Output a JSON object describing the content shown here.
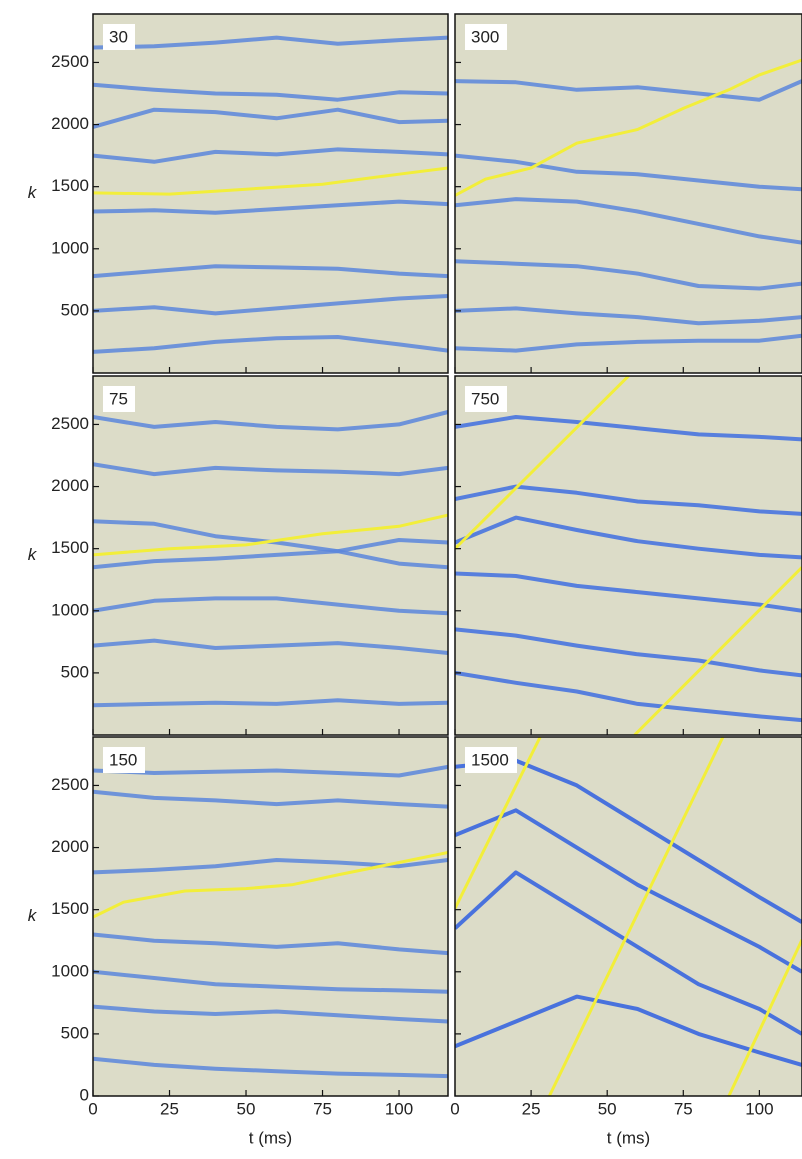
{
  "chart_data": [
    {
      "type": "line",
      "label": "30",
      "ylabel": "k",
      "xlim": [
        0,
        116
      ],
      "ylim": [
        0,
        2890
      ],
      "xticks": [
        0,
        25,
        50,
        75,
        100
      ],
      "yticks": [
        500,
        1000,
        1500,
        2000,
        2500
      ],
      "line": {
        "color": "#f2ee3a",
        "x": [
          0,
          25,
          50,
          75,
          100,
          116
        ],
        "values": [
          1450,
          1440,
          1480,
          1520,
          1600,
          1650
        ]
      },
      "ridges": {
        "color": "#5a86dc",
        "x": [
          0,
          20,
          40,
          60,
          80,
          100,
          116
        ],
        "values": [
          [
            2620,
            2630,
            2660,
            2700,
            2650,
            2680,
            2700
          ],
          [
            2320,
            2280,
            2250,
            2240,
            2200,
            2260,
            2250
          ],
          [
            1980,
            2120,
            2100,
            2050,
            2120,
            2020,
            2030
          ],
          [
            1750,
            1700,
            1780,
            1760,
            1800,
            1780,
            1760
          ],
          [
            1300,
            1310,
            1290,
            1320,
            1350,
            1380,
            1360
          ],
          [
            780,
            820,
            860,
            850,
            840,
            800,
            780
          ],
          [
            500,
            530,
            480,
            520,
            560,
            600,
            620
          ],
          [
            170,
            200,
            250,
            280,
            290,
            230,
            180
          ]
        ]
      }
    },
    {
      "type": "line",
      "label": "300",
      "xlim": [
        0,
        114
      ],
      "ylim": [
        0,
        2890
      ],
      "xticks": [
        0,
        25,
        50,
        75,
        100
      ],
      "yticks": [
        500,
        1000,
        1500,
        2000,
        2500
      ],
      "line": {
        "color": "#f2ee3a",
        "x": [
          0,
          10,
          25,
          40,
          60,
          75,
          90,
          100,
          114
        ],
        "values": [
          1430,
          1560,
          1650,
          1850,
          1960,
          2130,
          2280,
          2400,
          2520
        ]
      },
      "ridges": {
        "color": "#5a86dc",
        "x": [
          0,
          20,
          40,
          60,
          80,
          100,
          114
        ],
        "values": [
          [
            2350,
            2340,
            2280,
            2300,
            2250,
            2200,
            2350
          ],
          [
            1750,
            1700,
            1620,
            1600,
            1550,
            1500,
            1480
          ],
          [
            1350,
            1400,
            1380,
            1300,
            1200,
            1100,
            1050
          ],
          [
            900,
            880,
            860,
            800,
            700,
            680,
            720
          ],
          [
            500,
            520,
            480,
            450,
            400,
            420,
            450
          ],
          [
            200,
            180,
            230,
            250,
            260,
            260,
            300
          ]
        ]
      }
    },
    {
      "type": "line",
      "label": "75",
      "ylabel": "k",
      "xlim": [
        0,
        116
      ],
      "ylim": [
        0,
        2890
      ],
      "xticks": [
        0,
        25,
        50,
        75,
        100
      ],
      "yticks": [
        500,
        1000,
        1500,
        2000,
        2500
      ],
      "line": {
        "color": "#f2ee3a",
        "x": [
          0,
          25,
          50,
          75,
          100,
          116
        ],
        "values": [
          1450,
          1500,
          1530,
          1620,
          1680,
          1770
        ]
      },
      "ridges": {
        "color": "#5a86dc",
        "x": [
          0,
          20,
          40,
          60,
          80,
          100,
          116
        ],
        "values": [
          [
            2560,
            2480,
            2520,
            2480,
            2460,
            2500,
            2600
          ],
          [
            2180,
            2100,
            2150,
            2130,
            2120,
            2100,
            2150
          ],
          [
            1720,
            1700,
            1600,
            1550,
            1480,
            1570,
            1550
          ],
          [
            1350,
            1400,
            1420,
            1450,
            1480,
            1380,
            1350
          ],
          [
            1000,
            1080,
            1100,
            1100,
            1050,
            1000,
            980
          ],
          [
            720,
            760,
            700,
            720,
            740,
            700,
            660
          ],
          [
            240,
            250,
            260,
            250,
            280,
            250,
            260
          ]
        ]
      }
    },
    {
      "type": "line",
      "label": "750",
      "xlim": [
        0,
        114
      ],
      "ylim": [
        0,
        2890
      ],
      "xticks": [
        0,
        25,
        50,
        75,
        100
      ],
      "yticks": [
        500,
        1000,
        1500,
        2000,
        2500
      ],
      "line": {
        "color": "#f2ee3a",
        "x": [
          0,
          57,
          null,
          59,
          114
        ],
        "values": [
          1500,
          2890,
          null,
          0,
          1350
        ]
      },
      "ridges": {
        "color": "#3f6fe0",
        "x": [
          0,
          20,
          40,
          60,
          80,
          100,
          114
        ],
        "values": [
          [
            2480,
            2560,
            2520,
            2470,
            2420,
            2400,
            2380
          ],
          [
            1900,
            2000,
            1950,
            1880,
            1850,
            1800,
            1780
          ],
          [
            1550,
            1750,
            1650,
            1560,
            1500,
            1450,
            1430
          ],
          [
            1300,
            1280,
            1200,
            1150,
            1100,
            1050,
            1000
          ],
          [
            850,
            800,
            720,
            650,
            600,
            520,
            480
          ],
          [
            500,
            420,
            350,
            250,
            200,
            150,
            120
          ]
        ]
      }
    },
    {
      "type": "line",
      "label": "150",
      "ylabel": "k",
      "xlabel": "t (ms)",
      "xlim": [
        0,
        116
      ],
      "ylim": [
        0,
        2890
      ],
      "xticks": [
        0,
        25,
        50,
        75,
        100
      ],
      "yticks": [
        0,
        500,
        1000,
        1500,
        2000,
        2500
      ],
      "line": {
        "color": "#f2ee3a",
        "x": [
          0,
          10,
          30,
          50,
          65,
          80,
          100,
          116
        ],
        "values": [
          1440,
          1560,
          1650,
          1670,
          1700,
          1780,
          1880,
          1960
        ]
      },
      "ridges": {
        "color": "#5a86dc",
        "x": [
          0,
          20,
          40,
          60,
          80,
          100,
          116
        ],
        "values": [
          [
            2620,
            2600,
            2610,
            2620,
            2600,
            2580,
            2650
          ],
          [
            2450,
            2400,
            2380,
            2350,
            2380,
            2350,
            2330
          ],
          [
            1800,
            1820,
            1850,
            1900,
            1880,
            1850,
            1900
          ],
          [
            1300,
            1250,
            1230,
            1200,
            1230,
            1180,
            1150
          ],
          [
            1000,
            950,
            900,
            880,
            860,
            850,
            840
          ],
          [
            720,
            680,
            660,
            680,
            650,
            620,
            600
          ],
          [
            300,
            250,
            220,
            200,
            180,
            170,
            160
          ]
        ]
      }
    },
    {
      "type": "line",
      "label": "1500",
      "xlabel": "t (ms)",
      "xlim": [
        0,
        114
      ],
      "ylim": [
        0,
        2890
      ],
      "xticks": [
        0,
        25,
        50,
        75,
        100
      ],
      "yticks": [
        500,
        1000,
        1500,
        2000,
        2500
      ],
      "line": {
        "color": "#f2ee3a",
        "x": [
          0,
          28,
          null,
          31,
          88,
          null,
          90,
          114
        ],
        "values": [
          1510,
          2890,
          null,
          0,
          2890,
          null,
          0,
          1258
        ]
      },
      "ridges": {
        "color": "#2f5fe0",
        "x": [
          0,
          20,
          40,
          60,
          80,
          100,
          114
        ],
        "values": [
          [
            1350,
            1800,
            1500,
            1200,
            900,
            700,
            500
          ],
          [
            2100,
            2300,
            2000,
            1700,
            1450,
            1200,
            1000
          ],
          [
            2650,
            2700,
            2500,
            2200,
            1900,
            1600,
            1400
          ],
          [
            400,
            600,
            800,
            700,
            500,
            350,
            250
          ]
        ]
      }
    }
  ]
}
